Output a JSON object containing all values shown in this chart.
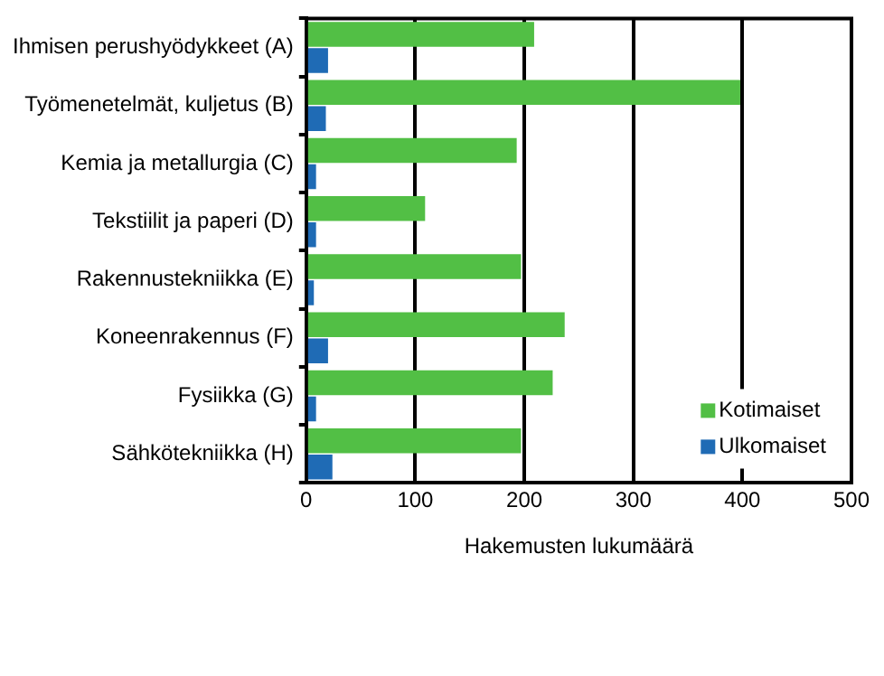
{
  "chart_data": {
    "type": "bar",
    "orientation": "horizontal",
    "xlabel": "Hakemusten lukumäärä",
    "categories": [
      "Ihmisen perushyödykkeet (A)",
      "Työmenetelmät, kuljetus (B)",
      "Kemia ja metallurgia (C)",
      "Tekstiilit ja paperi (D)",
      "Rakennustekniikka (E)",
      "Koneenrakennus (F)",
      "Fysiikka (G)",
      "Sähkötekniikka (H)"
    ],
    "series": [
      {
        "name": "Kotimaiset",
        "color": "#52bf45",
        "values": [
          209,
          398,
          193,
          109,
          197,
          237,
          226,
          197
        ]
      },
      {
        "name": "Ulkomaiset",
        "color": "#1f6bb5",
        "values": [
          20,
          18,
          9,
          9,
          7,
          20,
          9,
          24
        ]
      }
    ],
    "xlim": [
      0,
      500
    ],
    "xticks": [
      0,
      100,
      200,
      300,
      400,
      500
    ],
    "grid": "x",
    "legend": "bottom right"
  }
}
